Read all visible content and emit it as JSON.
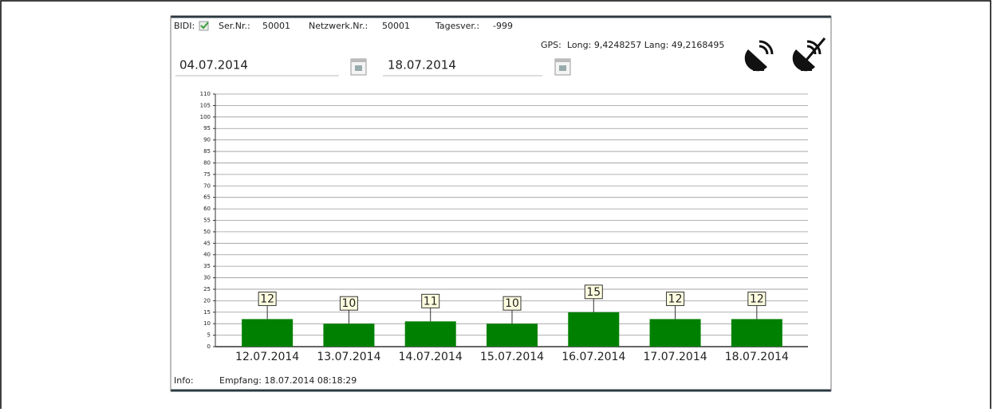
{
  "header": {
    "bidi_label": "BIDI:",
    "ser_label": "Ser.Nr.:",
    "ser_value": "50001",
    "net_label": "Netzwerk.Nr.:",
    "net_value": "50001",
    "tages_label": "Tagesver.:",
    "tages_value": "-999",
    "gps_label": "GPS:",
    "gps_value": "Long: 9,4248257 Lang: 49,2168495"
  },
  "dates": {
    "from": "04.07.2014",
    "to": "18.07.2014"
  },
  "footer": {
    "info_label": "Info:",
    "info_value": "Empfang: 18.07.2014 08:18:29"
  },
  "chart_data": {
    "type": "bar",
    "categories": [
      "12.07.2014",
      "13.07.2014",
      "14.07.2014",
      "15.07.2014",
      "16.07.2014",
      "17.07.2014",
      "18.07.2014"
    ],
    "values": [
      12,
      10,
      11,
      10,
      15,
      12,
      12
    ],
    "color": "#008000",
    "ylim": [
      0,
      110
    ],
    "yticks": [
      0,
      5,
      10,
      15,
      20,
      25,
      30,
      35,
      40,
      45,
      50,
      55,
      60,
      65,
      70,
      75,
      80,
      85,
      90,
      95,
      100,
      105,
      110
    ],
    "grid": true
  }
}
